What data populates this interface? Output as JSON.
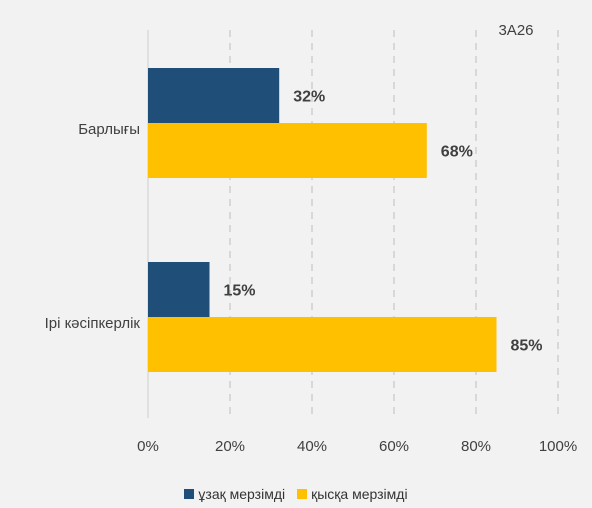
{
  "chart_data": {
    "type": "bar",
    "orientation": "horizontal",
    "categories": [
      "Барлығы",
      "Ірі кәсіпкерлік"
    ],
    "series": [
      {
        "name": "ұзақ мерзімді",
        "values": [
          32,
          15
        ],
        "labels": [
          "32%",
          "15%"
        ],
        "color": "#1f4e79"
      },
      {
        "name": "қысқа мерзімді",
        "values": [
          68,
          85
        ],
        "labels": [
          "68%",
          "85%"
        ],
        "color": "#ffc000"
      }
    ],
    "xlim": [
      0,
      100
    ],
    "ticks": [
      0,
      20,
      40,
      60,
      80,
      100
    ],
    "tick_labels": [
      "0%",
      "20%",
      "40%",
      "60%",
      "80%",
      "100%"
    ],
    "annotation": "3A26",
    "grid": "vertical dashed",
    "legend": "bottom"
  }
}
